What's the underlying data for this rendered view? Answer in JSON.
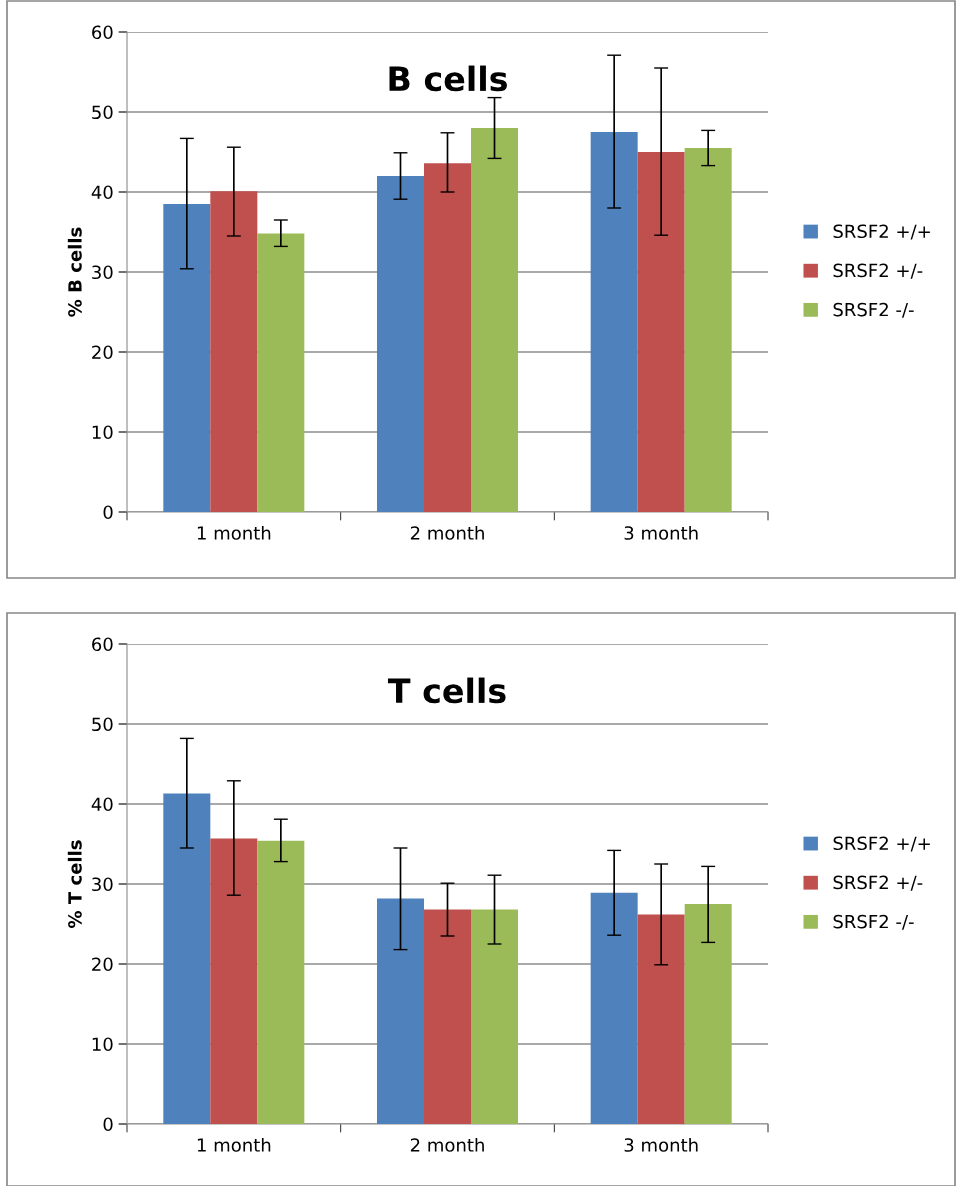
{
  "chart_data": [
    {
      "type": "bar",
      "title": "B cells",
      "ylabel": "% B cells",
      "categories": [
        "1 month",
        "2 month",
        "3 month"
      ],
      "ylim": [
        0,
        60
      ],
      "yticks": [
        0,
        10,
        20,
        30,
        40,
        50,
        60
      ],
      "grid": "y",
      "legend": "right",
      "series": [
        {
          "name": "SRSF2 +/+",
          "color": "#4f81bd",
          "values": [
            38.5,
            42.0,
            47.5
          ],
          "errors": [
            [
              30.4,
              46.7
            ],
            [
              39.1,
              44.9
            ],
            [
              38.0,
              57.1
            ]
          ]
        },
        {
          "name": "SRSF2 +/-",
          "color": "#c0504d",
          "values": [
            40.1,
            43.6,
            45.0
          ],
          "errors": [
            [
              34.5,
              45.6
            ],
            [
              40.0,
              47.4
            ],
            [
              34.6,
              55.5
            ]
          ]
        },
        {
          "name": "SRSF2 -/-",
          "color": "#9bbb59",
          "values": [
            34.8,
            48.0,
            45.5
          ],
          "errors": [
            [
              33.2,
              36.5
            ],
            [
              44.2,
              51.8
            ],
            [
              43.3,
              47.7
            ]
          ]
        }
      ]
    },
    {
      "type": "bar",
      "title": "T cells",
      "ylabel": "% T cells",
      "categories": [
        "1 month",
        "2 month",
        "3 month"
      ],
      "ylim": [
        0,
        60
      ],
      "yticks": [
        0,
        10,
        20,
        30,
        40,
        50,
        60
      ],
      "grid": "y",
      "legend": "right",
      "series": [
        {
          "name": "SRSF2 +/+",
          "color": "#4f81bd",
          "values": [
            41.3,
            28.2,
            28.9
          ],
          "errors": [
            [
              34.5,
              48.2
            ],
            [
              21.8,
              34.5
            ],
            [
              23.6,
              34.2
            ]
          ]
        },
        {
          "name": "SRSF2 +/-",
          "color": "#c0504d",
          "values": [
            35.7,
            26.8,
            26.2
          ],
          "errors": [
            [
              28.6,
              42.9
            ],
            [
              23.5,
              30.1
            ],
            [
              19.9,
              32.5
            ]
          ]
        },
        {
          "name": "SRSF2 -/-",
          "color": "#9bbb59",
          "values": [
            35.4,
            26.8,
            27.5
          ],
          "errors": [
            [
              32.8,
              38.1
            ],
            [
              22.5,
              31.1
            ],
            [
              22.7,
              32.2
            ]
          ]
        }
      ]
    }
  ]
}
